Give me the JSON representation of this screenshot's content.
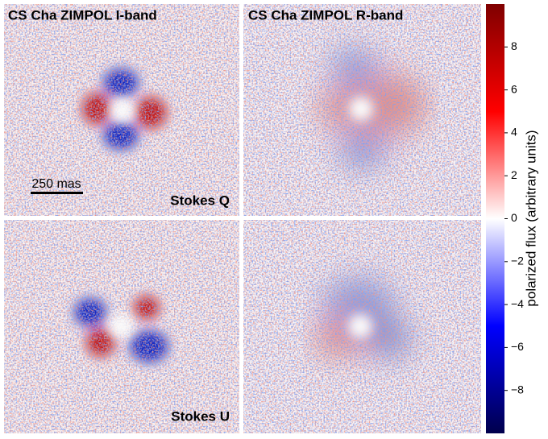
{
  "chart_data": {
    "type": "image",
    "panels": [
      {
        "title": "CS Cha ZIMPOL I-band"
      },
      {
        "title": "CS Cha ZIMPOL R-band"
      },
      {
        "label": "Stokes Q"
      },
      {
        "label": "Stokes U"
      }
    ],
    "scale_bar": "250 mas",
    "colorbar": {
      "label": "polarized flux (arbitrary units)",
      "ylim": [
        -10,
        10
      ],
      "yticks": [
        {
          "value": -8,
          "label": "−8"
        },
        {
          "value": -6,
          "label": "−6"
        },
        {
          "value": -4,
          "label": "−4"
        },
        {
          "value": -2,
          "label": "−2"
        },
        0,
        2,
        4,
        6,
        8
      ],
      "colors": [
        "#00004c",
        "#0000ff",
        "#ffffff",
        "#ff0000",
        "#7f0000"
      ]
    }
  }
}
